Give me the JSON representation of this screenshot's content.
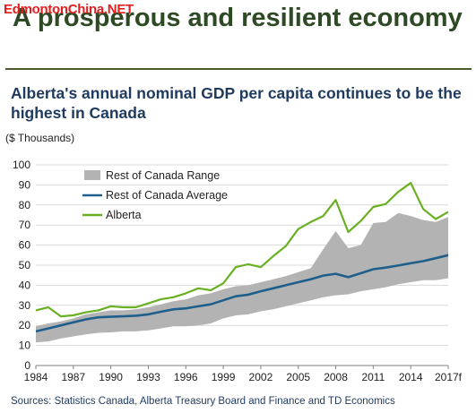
{
  "watermark": "EdmontonChina.NET",
  "slide_title": "A prosperous and resilient economy",
  "colors": {
    "range": "#b3b3b3",
    "average": "#1f5f8b",
    "alberta": "#6ab023",
    "title": "#2e4a24",
    "chart_title": "#1e3a5f"
  },
  "chart_data": {
    "type": "line",
    "title": "Alberta's annual nominal GDP per capita continues to be the highest in Canada",
    "ylabel": "($ Thousands)",
    "xlabel": "",
    "ylim": [
      0,
      100
    ],
    "yticks": [
      "0",
      "10",
      "20",
      "30",
      "40",
      "50",
      "60",
      "70",
      "80",
      "90",
      "100"
    ],
    "xticks": [
      "1984",
      "1987",
      "1990",
      "1993",
      "1996",
      "1999",
      "2002",
      "2005",
      "2008",
      "2011",
      "2014",
      "2017f"
    ],
    "grid": "horizontal",
    "legend_position": "top-left",
    "x": [
      1984,
      1985,
      1986,
      1987,
      1988,
      1989,
      1990,
      1991,
      1992,
      1993,
      1994,
      1995,
      1996,
      1997,
      1998,
      1999,
      2000,
      2001,
      2002,
      2003,
      2004,
      2005,
      2006,
      2007,
      2008,
      2009,
      2010,
      2011,
      2012,
      2013,
      2014,
      2015,
      2016,
      2017
    ],
    "series": [
      {
        "name": "Rest of Canada Range",
        "kind": "band",
        "low": [
          11.5,
          12,
          13.5,
          14.5,
          15.5,
          16.3,
          16.5,
          17,
          17,
          17.5,
          18.5,
          19.5,
          19.5,
          20,
          21,
          23.5,
          25,
          25.5,
          27,
          28,
          29.5,
          31,
          32.5,
          34,
          35,
          35.5,
          37,
          38,
          39,
          40.5,
          41.5,
          42.5,
          42.5,
          43.5
        ],
        "high": [
          19.5,
          21,
          22,
          23.5,
          25.5,
          26.5,
          27.5,
          27.5,
          28,
          29,
          30.5,
          32,
          33,
          35,
          36,
          38,
          39.5,
          40,
          41.5,
          43,
          44.5,
          46.5,
          48.5,
          58,
          67,
          58.5,
          60,
          71,
          71.5,
          76,
          74.5,
          72.5,
          71.5,
          74
        ]
      },
      {
        "name": "Rest of Canada Average",
        "kind": "line",
        "values": [
          17,
          18.5,
          20,
          21.5,
          23,
          24,
          24.3,
          24.5,
          24.8,
          25.5,
          26.8,
          28,
          28.5,
          29.5,
          30.5,
          32.5,
          34.5,
          35.3,
          37,
          38.5,
          40,
          41.5,
          43,
          44.8,
          45.7,
          44,
          46,
          48,
          48.8,
          49.8,
          51,
          52,
          53.5,
          55
        ]
      },
      {
        "name": "Alberta",
        "kind": "line",
        "values": [
          27.5,
          29,
          24.5,
          25,
          26.5,
          27.5,
          29.5,
          29,
          29,
          31,
          33,
          34,
          36,
          38.5,
          37.5,
          41,
          49,
          50.5,
          49,
          54.5,
          59.5,
          68,
          71.5,
          74.5,
          82.5,
          66.5,
          72,
          79,
          80.5,
          86.5,
          91,
          78,
          73,
          76.5
        ]
      }
    ],
    "source": "Sources: Statistics Canada, Alberta Treasury Board and Finance and TD Economics"
  }
}
